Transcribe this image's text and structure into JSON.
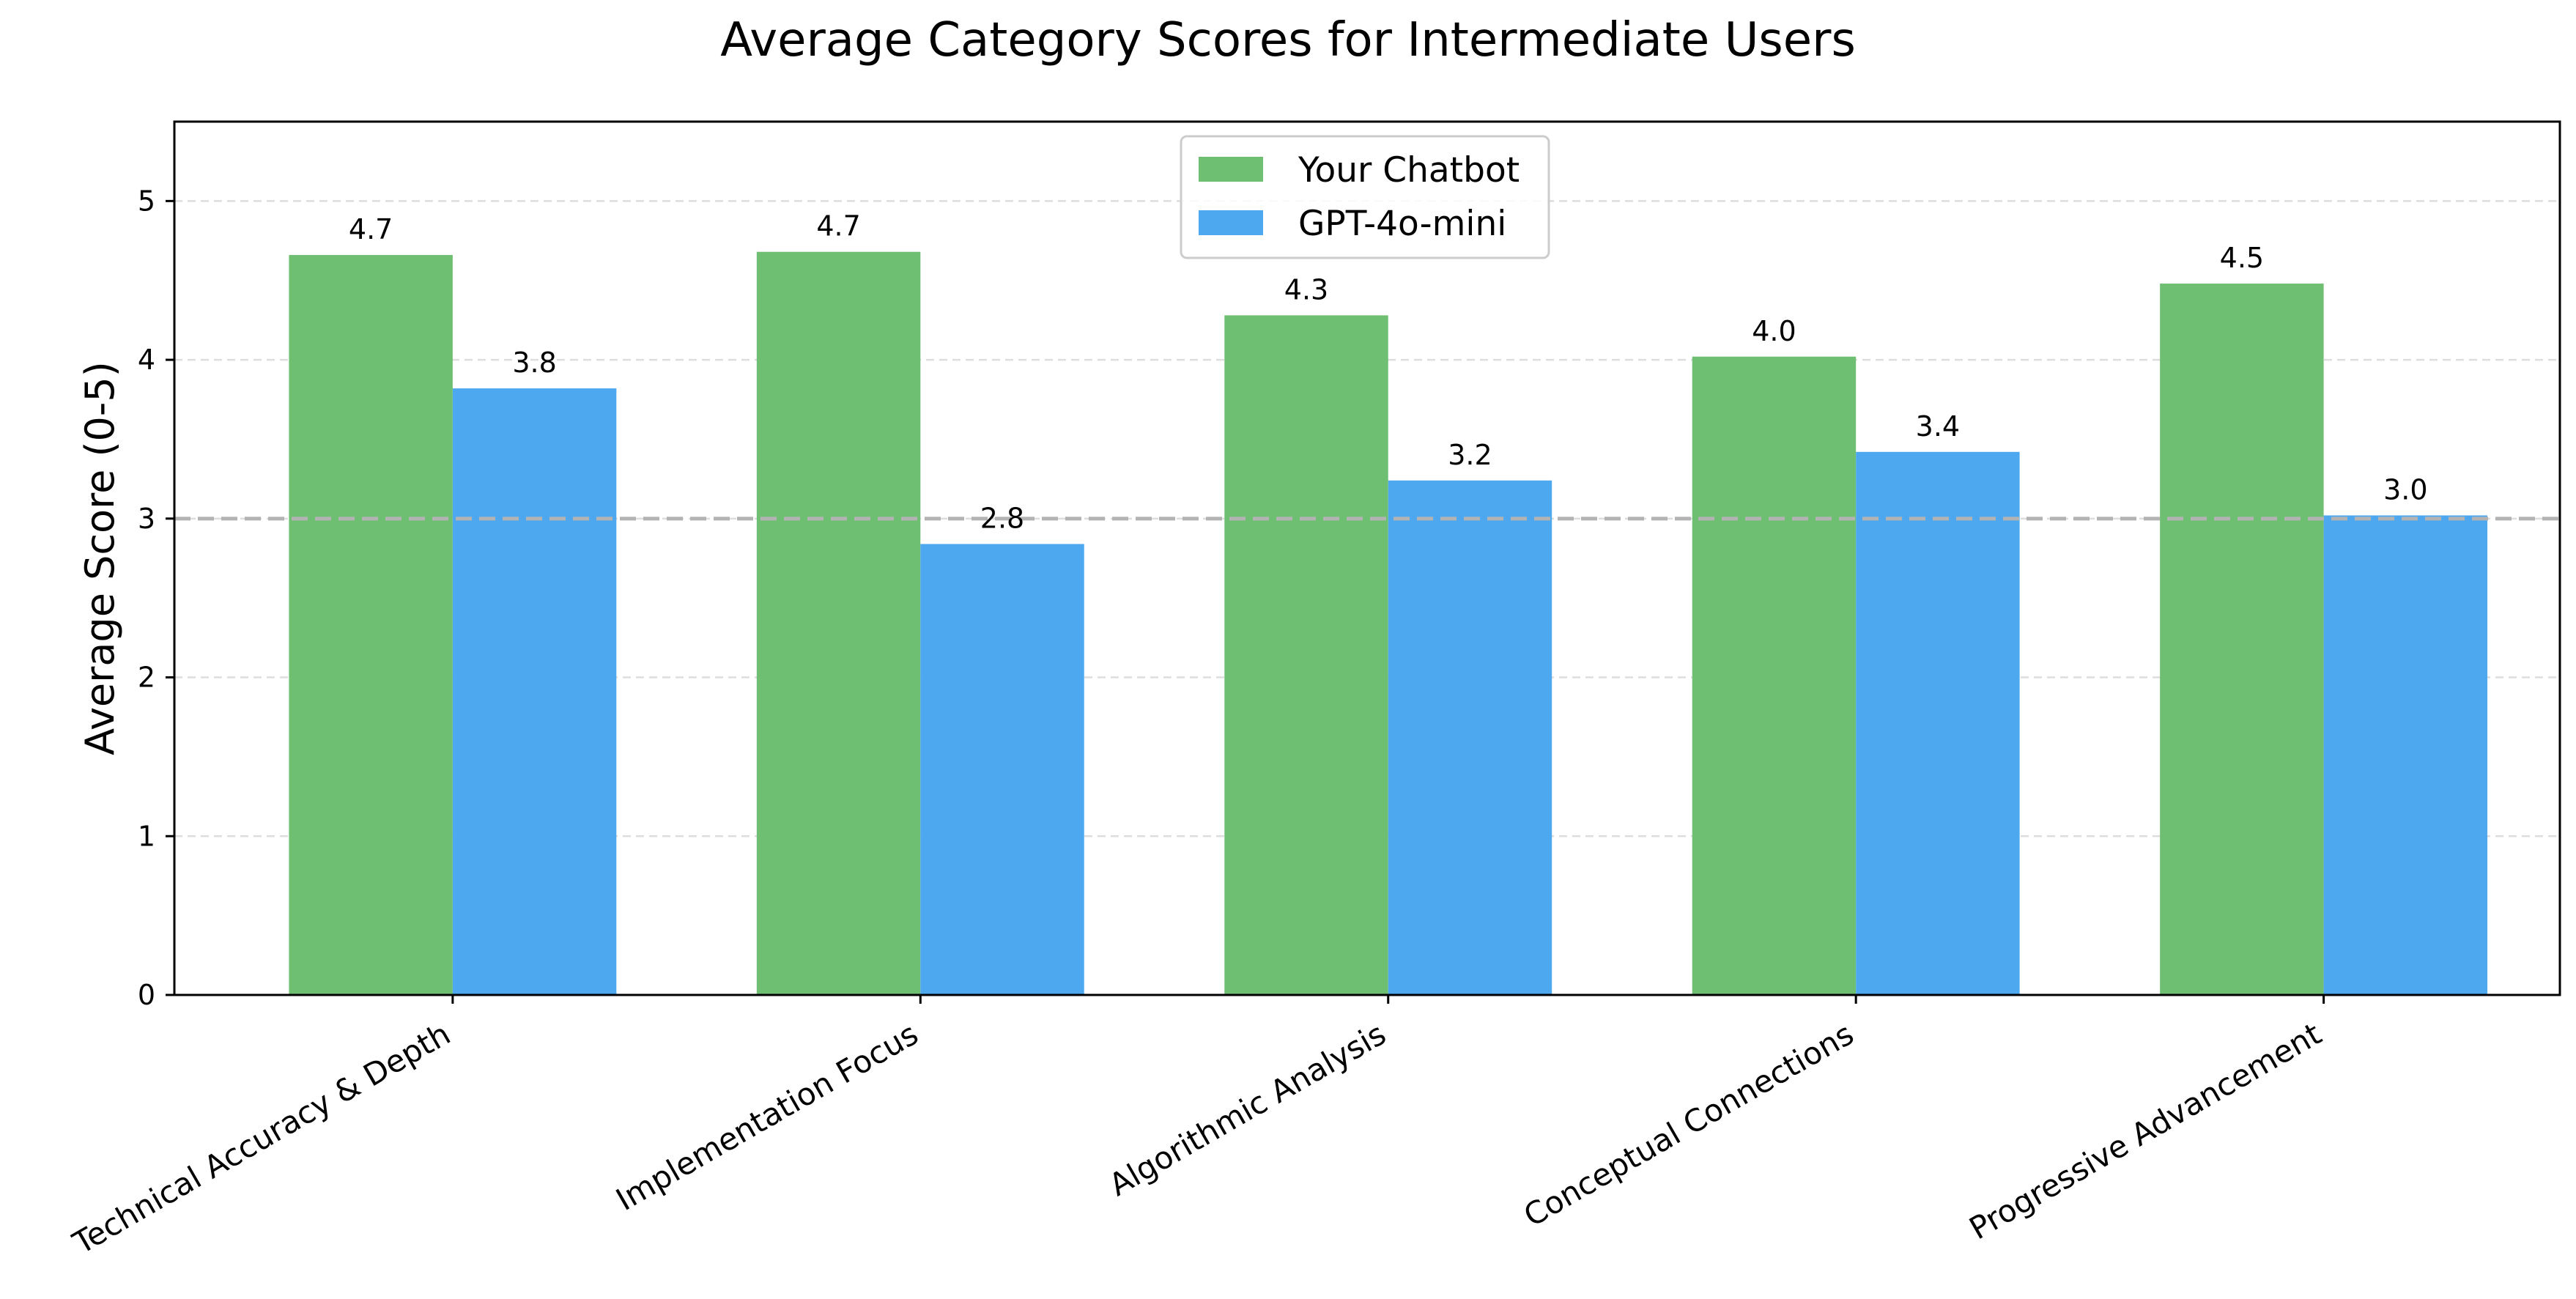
{
  "chart_data": {
    "type": "bar",
    "title": "Average Category Scores for Intermediate Users",
    "xlabel": "",
    "ylabel": "Average Score (0-5)",
    "ylim": [
      0,
      5.5
    ],
    "yticks": [
      "0",
      "1",
      "2",
      "3",
      "4",
      "5"
    ],
    "grid": "horizontal dashed",
    "reference_line": 3,
    "legend_position": "upper center",
    "categories": [
      "Technical Accuracy & Depth",
      "Implementation Focus",
      "Algorithmic Analysis",
      "Conceptual Connections",
      "Progressive Advancement"
    ],
    "series": [
      {
        "name": "Your Chatbot",
        "color": "#6fbf73",
        "values": [
          4.66,
          4.68,
          4.28,
          4.02,
          4.48
        ],
        "labels": [
          "4.7",
          "4.7",
          "4.3",
          "4.0",
          "4.5"
        ]
      },
      {
        "name": "GPT-4o-mini",
        "color": "#4da8f0",
        "values": [
          3.82,
          2.84,
          3.24,
          3.42,
          3.02
        ],
        "labels": [
          "3.8",
          "2.8",
          "3.2",
          "3.4",
          "3.0"
        ]
      }
    ]
  }
}
